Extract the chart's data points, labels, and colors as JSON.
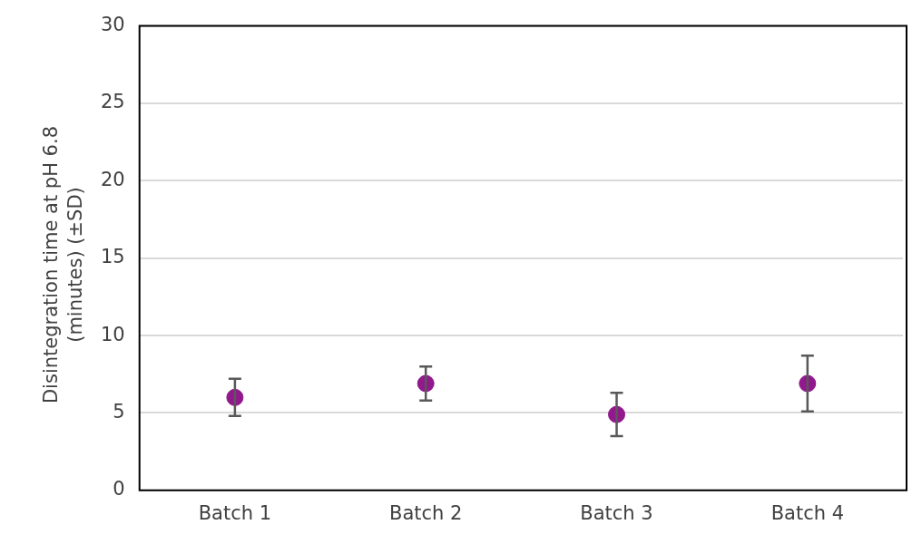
{
  "chart_data": {
    "type": "scatter",
    "ylabel": "Disintegration time at pH 6.8 (minutes) (±SD)",
    "categories": [
      "Batch 1",
      "Batch 2",
      "Batch 3",
      "Batch 4"
    ],
    "series": [
      {
        "color": "#91198c",
        "values": [
          6,
          6.9,
          4.9,
          6.9
        ],
        "errors": [
          1.2,
          1.1,
          1.4,
          1.8
        ]
      }
    ],
    "ylim": [
      0,
      30
    ],
    "yticks": [
      0,
      5,
      10,
      15,
      20,
      25,
      30
    ],
    "grid": "y",
    "legend": false,
    "marker": "circle"
  }
}
